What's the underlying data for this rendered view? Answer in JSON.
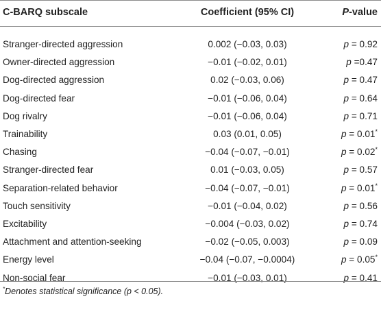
{
  "table": {
    "headers": {
      "subscale": "C-BARQ subscale",
      "coefficient": "Coefficient (95% CI)",
      "p_italic": "P",
      "p_rest": "-value"
    },
    "rows": [
      {
        "subscale": "Stranger-directed aggression",
        "coefficient": "0.002 (−0.03, 0.03)",
        "p": "p",
        "p_value": " = 0.92",
        "mark": ""
      },
      {
        "subscale": "Owner-directed aggression",
        "coefficient": "−0.01 (−0.02, 0.01)",
        "p": "p",
        "p_value": " =0.47",
        "mark": ""
      },
      {
        "subscale": "Dog-directed aggression",
        "coefficient": "0.02 (−0.03, 0.06)",
        "p": "p",
        "p_value": " = 0.47",
        "mark": ""
      },
      {
        "subscale": "Dog-directed fear",
        "coefficient": "−0.01 (−0.06, 0.04)",
        "p": "p",
        "p_value": " = 0.64",
        "mark": ""
      },
      {
        "subscale": "Dog rivalry",
        "coefficient": "−0.01 (−0.06, 0.04)",
        "p": "p",
        "p_value": " = 0.71",
        "mark": ""
      },
      {
        "subscale": "Trainability",
        "coefficient": "0.03 (0.01, 0.05)",
        "p": "p",
        "p_value": " = 0.01",
        "mark": "*"
      },
      {
        "subscale": "Chasing",
        "coefficient": "−0.04 (−0.07, −0.01)",
        "p": "p",
        "p_value": " = 0.02",
        "mark": "*"
      },
      {
        "subscale": "Stranger-directed fear",
        "coefficient": "0.01 (−0.03, 0.05)",
        "p": "p",
        "p_value": " = 0.57",
        "mark": ""
      },
      {
        "subscale": "Separation-related behavior",
        "coefficient": "−0.04 (−0.07, −0.01)",
        "p": "p",
        "p_value": " = 0.01",
        "mark": "*"
      },
      {
        "subscale": "Touch sensitivity",
        "coefficient": "−0.01 (−0.04, 0.02)",
        "p": "p",
        "p_value": " = 0.56",
        "mark": ""
      },
      {
        "subscale": "Excitability",
        "coefficient": "−0.004 (−0.03, 0.02)",
        "p": "p",
        "p_value": " = 0.74",
        "mark": ""
      },
      {
        "subscale": "Attachment and attention-seeking",
        "coefficient": "−0.02 (−0.05, 0.003)",
        "p": "p",
        "p_value": " = 0.09",
        "mark": ""
      },
      {
        "subscale": "Energy level",
        "coefficient": "−0.04 (−0.07, −0.0004)",
        "p": "p",
        "p_value": " = 0.05",
        "mark": "*"
      },
      {
        "subscale": "Non-social fear",
        "coefficient": "−0.01 (−0.03, 0.01)",
        "p": "p",
        "p_value": " = 0.41",
        "mark": ""
      }
    ],
    "footnote": {
      "mark": "*",
      "text": "Denotes statistical significance (p < 0.05)."
    }
  }
}
